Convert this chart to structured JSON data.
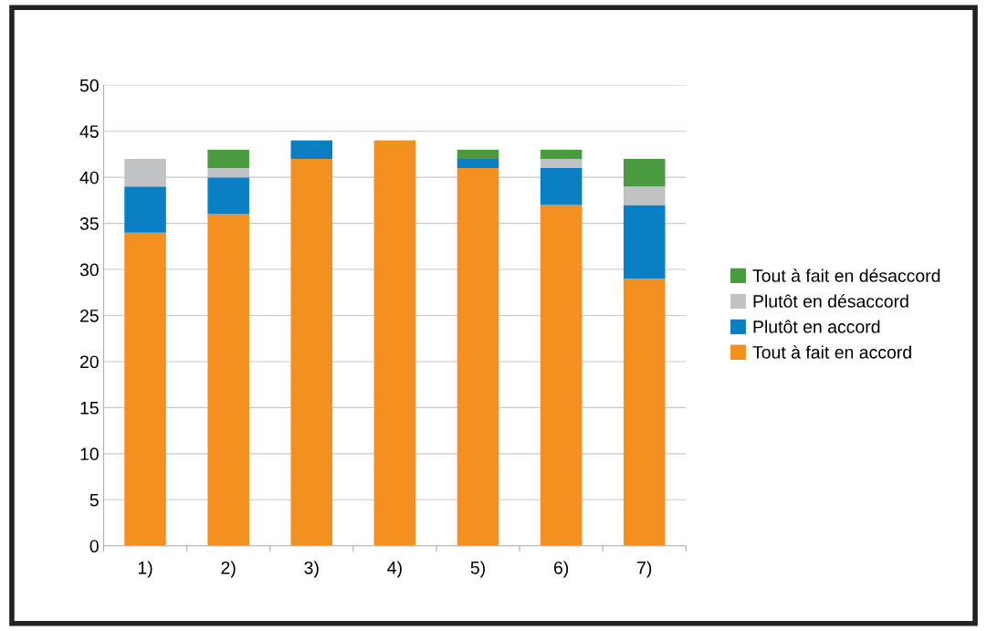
{
  "chart_data": {
    "type": "bar",
    "stacked": true,
    "categories": [
      "1)",
      "2)",
      "3)",
      "4)",
      "5)",
      "6)",
      "7)"
    ],
    "series": [
      {
        "name": "Tout à fait en accord",
        "color": "#f39020",
        "values": [
          34,
          36,
          42,
          44,
          41,
          37,
          29
        ]
      },
      {
        "name": "Plutôt en accord",
        "color": "#0a7fc4",
        "values": [
          5,
          4,
          2,
          0,
          1,
          4,
          8
        ]
      },
      {
        "name": "Plutôt en désaccord",
        "color": "#c0c2c4",
        "values": [
          3,
          1,
          0,
          0,
          0,
          1,
          2
        ]
      },
      {
        "name": "Tout à fait en désaccord",
        "color": "#4a9a40",
        "values": [
          0,
          2,
          0,
          0,
          1,
          1,
          3
        ]
      }
    ],
    "ylim": [
      0,
      50
    ],
    "yticks": [
      0,
      5,
      10,
      15,
      20,
      25,
      30,
      35,
      40,
      45,
      50
    ],
    "grid": "y",
    "legend": "right"
  }
}
